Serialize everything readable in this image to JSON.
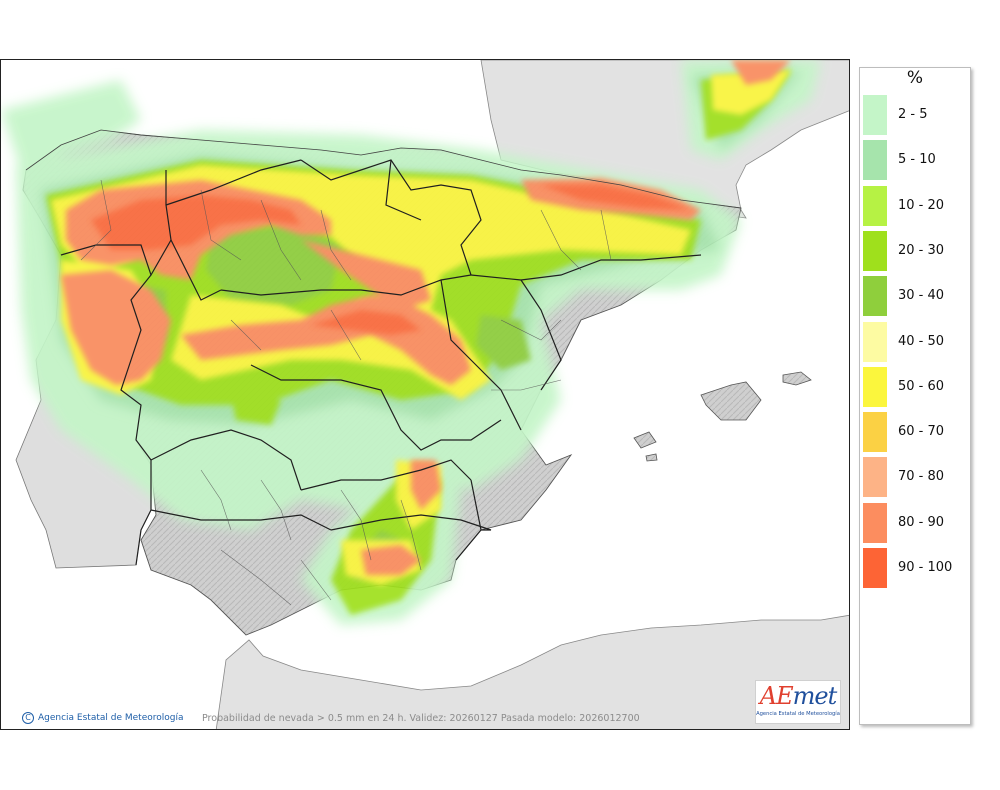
{
  "map": {
    "caption": "Probabilidad de nevada > 0.5 mm en 24 h. Validez: 20260127 Pasada modelo: 2026012700",
    "credit": "Agencia Estatal de Meteorología",
    "credit_symbol": "C",
    "sea_color": "#ffffff",
    "land_foreign_color": "#e2e2e2",
    "land_spain_color": "#cfcfcf"
  },
  "logo": {
    "word_a": "AE",
    "word_b": "met",
    "subtitle": "Agencia Estatal de Meteorología"
  },
  "legend": {
    "title": "%",
    "items": [
      {
        "label": "2 - 5",
        "color": "#c4f5c8"
      },
      {
        "label": "5 - 10",
        "color": "#a6e4ac"
      },
      {
        "label": "10 - 20",
        "color": "#b6f244"
      },
      {
        "label": "20 - 30",
        "color": "#9fe01c"
      },
      {
        "label": "30 - 40",
        "color": "#8fcf3c"
      },
      {
        "label": "40 - 50",
        "color": "#fdfba2"
      },
      {
        "label": "50 - 60",
        "color": "#fbf63d"
      },
      {
        "label": "60 - 70",
        "color": "#fbd144"
      },
      {
        "label": "70 - 80",
        "color": "#fdb386"
      },
      {
        "label": "80 - 90",
        "color": "#fc8d5f"
      },
      {
        "label": "90 - 100",
        "color": "#fd6435"
      }
    ]
  }
}
